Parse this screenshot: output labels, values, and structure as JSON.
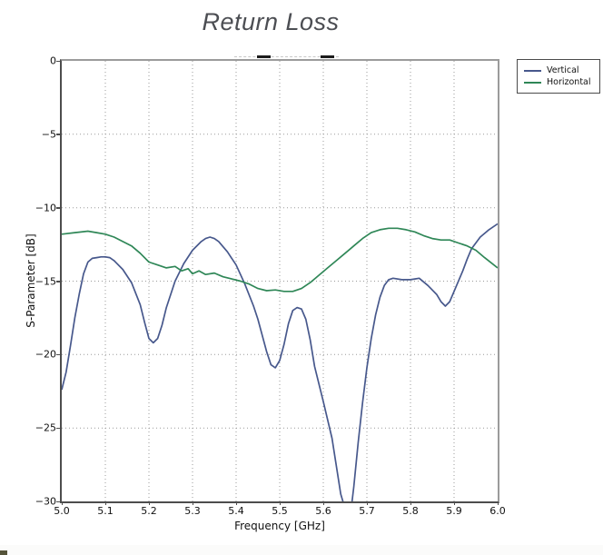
{
  "title": "Return Loss",
  "axes": {
    "xlabel": "Frequency [GHz]",
    "ylabel": "S-Parameter [dB]",
    "xticks": [
      "5.0",
      "5.1",
      "5.2",
      "5.3",
      "5.4",
      "5.5",
      "5.6",
      "5.7",
      "5.8",
      "5.9",
      "6.0"
    ],
    "yticks": [
      "0",
      "−5",
      "−10",
      "−15",
      "−20",
      "−25",
      "−30"
    ]
  },
  "legend": {
    "position": "outside-top-right",
    "items": [
      "Vertical",
      "Horizontal"
    ]
  },
  "colors": {
    "vertical_series": "#47588c",
    "horizontal_series": "#2f8757",
    "grid": "#9a9a9a",
    "title_text": "#4c4e53",
    "axis_text": "#111111"
  },
  "chart_data": {
    "type": "line",
    "title": "Return Loss",
    "xlabel": "Frequency [GHz]",
    "ylabel": "S-Parameter [dB]",
    "xlim": [
      5.0,
      6.0
    ],
    "ylim": [
      -30,
      0
    ],
    "grid": "dotted",
    "legend_position": "outside-top-right",
    "series": [
      {
        "name": "Vertical",
        "color": "#47588c",
        "x": [
          5.0,
          5.01,
          5.02,
          5.03,
          5.04,
          5.05,
          5.06,
          5.07,
          5.08,
          5.09,
          5.1,
          5.11,
          5.12,
          5.14,
          5.16,
          5.18,
          5.19,
          5.2,
          5.21,
          5.22,
          5.23,
          5.24,
          5.26,
          5.28,
          5.3,
          5.32,
          5.33,
          5.34,
          5.35,
          5.36,
          5.38,
          5.4,
          5.42,
          5.44,
          5.45,
          5.46,
          5.47,
          5.48,
          5.49,
          5.5,
          5.51,
          5.52,
          5.53,
          5.54,
          5.55,
          5.56,
          5.57,
          5.58,
          5.6,
          5.62,
          5.64,
          5.66,
          5.67,
          5.68,
          5.69,
          5.7,
          5.71,
          5.72,
          5.73,
          5.74,
          5.75,
          5.76,
          5.78,
          5.8,
          5.81,
          5.82,
          5.84,
          5.86,
          5.87,
          5.88,
          5.89,
          5.9,
          5.92,
          5.93,
          5.94,
          5.96,
          5.98,
          6.0
        ],
        "y": [
          -22.4,
          -21.2,
          -19.4,
          -17.5,
          -15.9,
          -14.5,
          -13.7,
          -13.45,
          -13.4,
          -13.35,
          -13.35,
          -13.4,
          -13.6,
          -14.2,
          -15.1,
          -16.6,
          -17.8,
          -18.9,
          -19.2,
          -18.9,
          -18.0,
          -16.8,
          -15.0,
          -13.8,
          -12.9,
          -12.3,
          -12.1,
          -12.0,
          -12.1,
          -12.3,
          -13.0,
          -13.9,
          -15.2,
          -16.7,
          -17.6,
          -18.7,
          -19.8,
          -20.7,
          -20.9,
          -20.4,
          -19.3,
          -17.9,
          -17.0,
          -16.8,
          -16.9,
          -17.6,
          -19.0,
          -20.8,
          -23.2,
          -25.7,
          -29.5,
          -31.5,
          -29.0,
          -26.0,
          -23.3,
          -20.9,
          -18.9,
          -17.3,
          -16.1,
          -15.3,
          -14.9,
          -14.8,
          -14.9,
          -14.9,
          -14.85,
          -14.8,
          -15.3,
          -15.9,
          -16.4,
          -16.7,
          -16.4,
          -15.7,
          -14.3,
          -13.5,
          -12.8,
          -12.0,
          -11.5,
          -11.1
        ]
      },
      {
        "name": "Horizontal",
        "color": "#2f8757",
        "x": [
          5.0,
          5.03,
          5.06,
          5.08,
          5.1,
          5.12,
          5.14,
          5.16,
          5.18,
          5.2,
          5.22,
          5.24,
          5.26,
          5.275,
          5.29,
          5.3,
          5.315,
          5.33,
          5.35,
          5.37,
          5.39,
          5.41,
          5.43,
          5.45,
          5.47,
          5.49,
          5.51,
          5.53,
          5.55,
          5.57,
          5.59,
          5.61,
          5.63,
          5.65,
          5.67,
          5.69,
          5.71,
          5.73,
          5.75,
          5.77,
          5.79,
          5.81,
          5.83,
          5.85,
          5.87,
          5.89,
          5.91,
          5.93,
          5.95,
          5.97,
          6.0
        ],
        "y": [
          -11.8,
          -11.7,
          -11.6,
          -11.7,
          -11.8,
          -12.0,
          -12.3,
          -12.6,
          -13.1,
          -13.7,
          -13.9,
          -14.1,
          -14.0,
          -14.3,
          -14.15,
          -14.5,
          -14.3,
          -14.55,
          -14.45,
          -14.7,
          -14.85,
          -15.0,
          -15.2,
          -15.5,
          -15.65,
          -15.6,
          -15.7,
          -15.7,
          -15.5,
          -15.1,
          -14.6,
          -14.1,
          -13.6,
          -13.1,
          -12.6,
          -12.1,
          -11.7,
          -11.5,
          -11.4,
          -11.4,
          -11.5,
          -11.65,
          -11.9,
          -12.1,
          -12.2,
          -12.2,
          -12.4,
          -12.6,
          -12.9,
          -13.4,
          -14.1
        ]
      }
    ]
  },
  "artifacts": {
    "clipped_trace": {
      "faint_start_ghz": 5.396,
      "faint_end_ghz": 5.635,
      "dash1_start_ghz": 5.448,
      "dash1_end_ghz": 5.479,
      "dash2_start_ghz": 5.594,
      "dash2_end_ghz": 5.625,
      "dash_color": "#1c1c1c",
      "faint_color": "#c8c8c8"
    }
  }
}
